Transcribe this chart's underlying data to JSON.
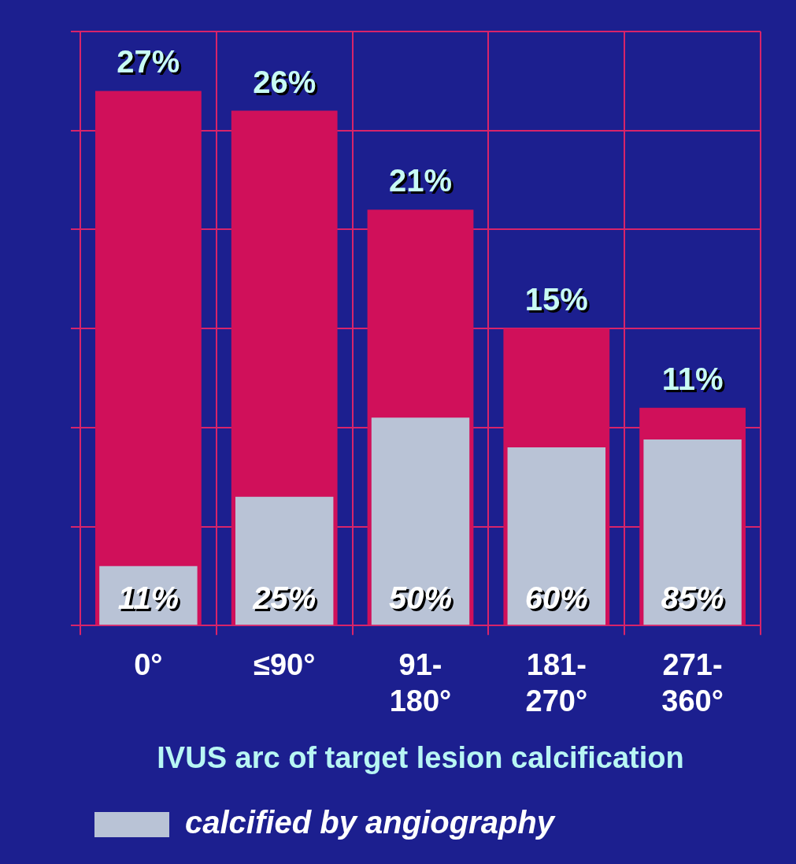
{
  "chart_data": {
    "type": "bar",
    "xlabel": "IVUS arc of target lesion calcification",
    "categories": [
      "0°",
      "≤90°",
      "91-180°",
      "181-270°",
      "271-360°"
    ],
    "series": [
      {
        "name": "calcified by angiography",
        "color": "#b9c3d6",
        "values": [
          3,
          6.5,
          10.5,
          9,
          9.4
        ]
      },
      {
        "color": "#d0105a",
        "values": [
          27,
          26,
          21,
          15,
          11
        ],
        "value_labels": [
          "27%",
          "26%",
          "21%",
          "15%",
          "11%"
        ]
      }
    ],
    "annotations": [
      "11%",
      "25%",
      "50%",
      "60%",
      "85%"
    ],
    "ylim": [
      0,
      30
    ],
    "yticks": [
      {
        "value": 0,
        "label": null
      },
      {
        "value": 5,
        "label": null
      },
      {
        "value": 10,
        "label": null
      },
      {
        "value": 15,
        "label": null
      },
      {
        "value": 20,
        "label": null
      },
      {
        "value": 25,
        "label": null
      },
      {
        "value": 30,
        "label": null
      }
    ],
    "grid": true,
    "legend": "bottom",
    "tick_labels": "x"
  }
}
